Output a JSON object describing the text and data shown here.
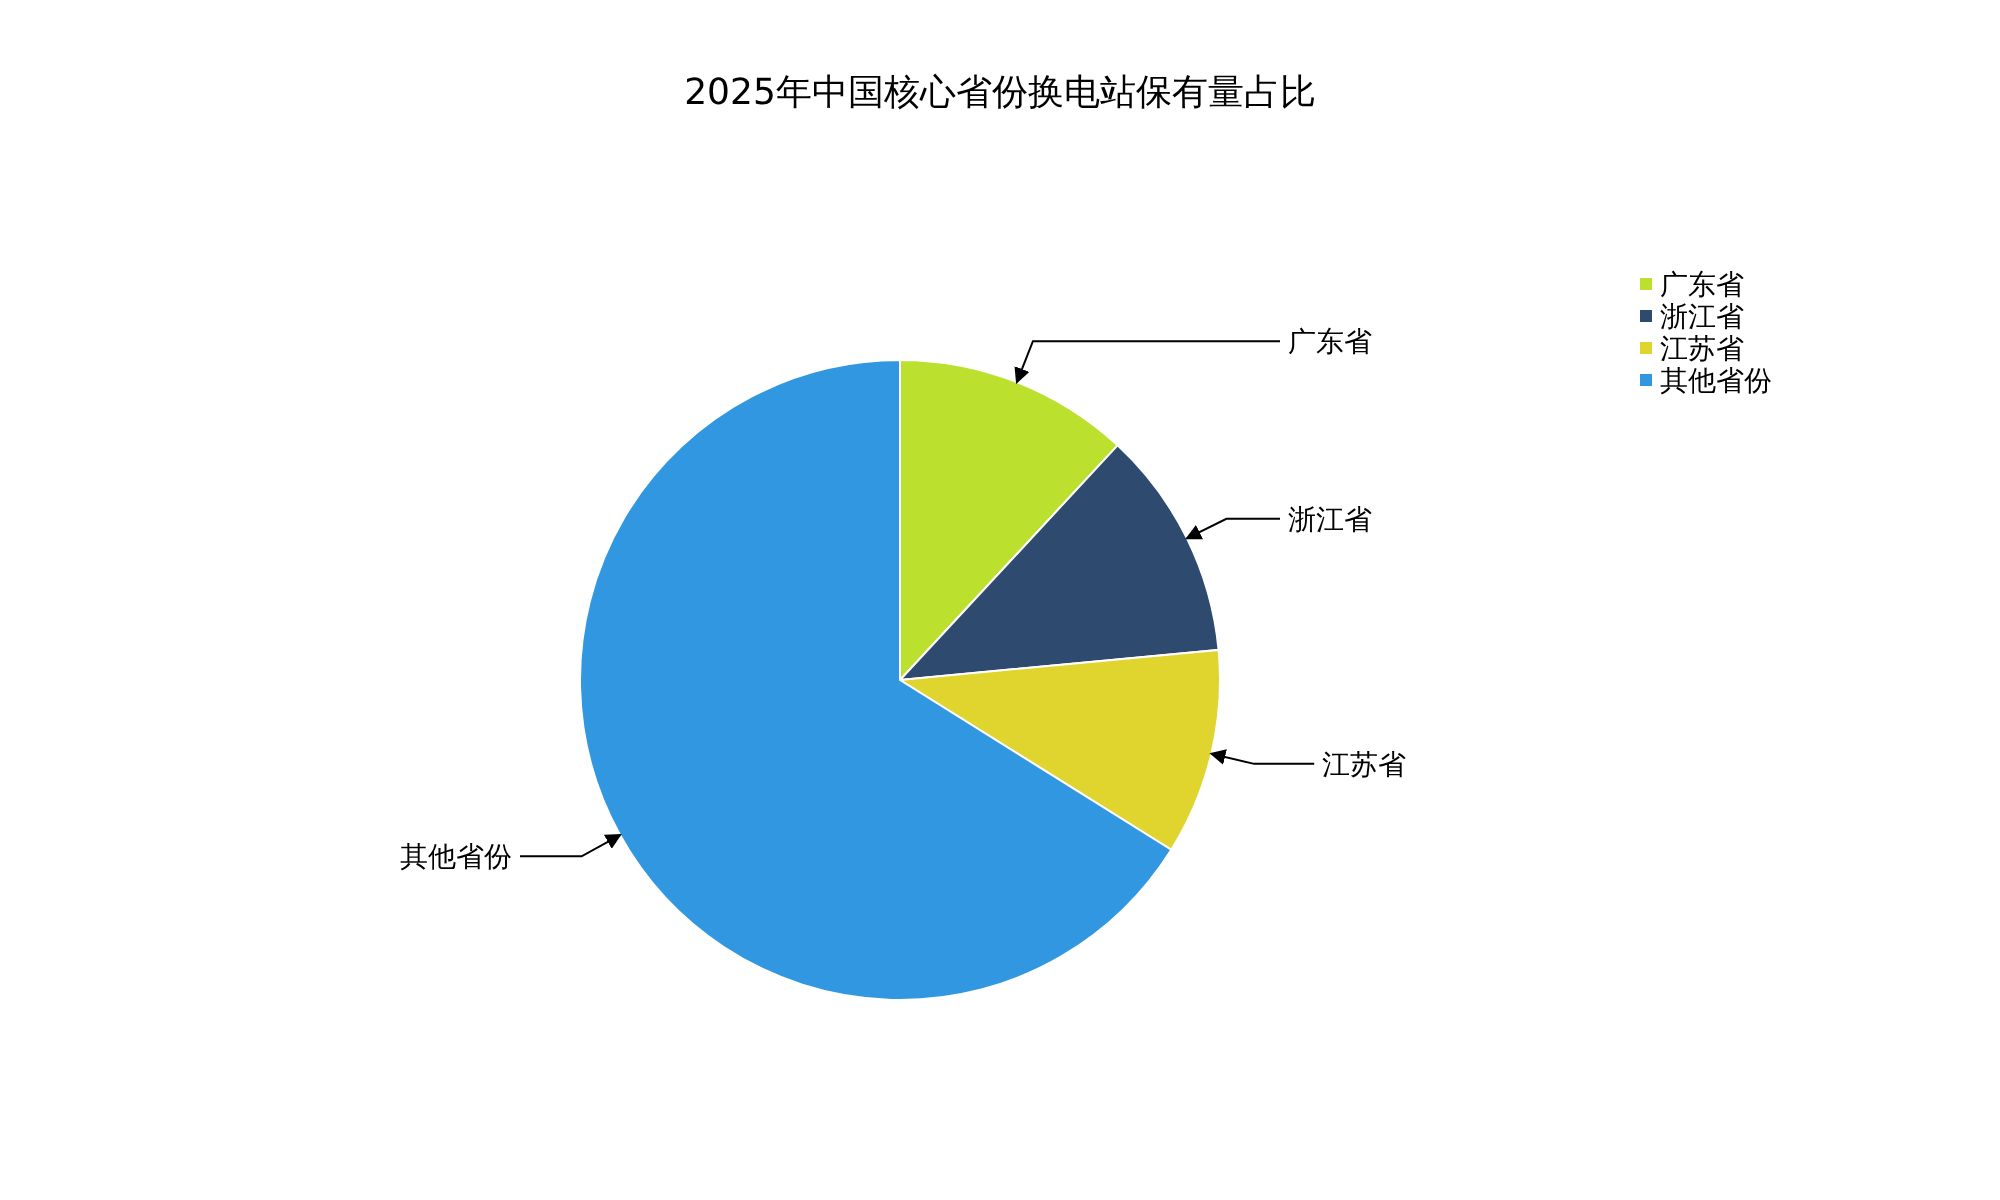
{
  "chart_data": {
    "type": "pie",
    "title": "2025年中国核心省份换电站保有量占比",
    "categories": [
      "广东省",
      "浙江省",
      "江苏省",
      "其他省份"
    ],
    "values": [
      11.9,
      11.6,
      10.4,
      66.1
    ],
    "colors": [
      "#bbe02e",
      "#2e4a6e",
      "#e0d52e",
      "#3097e0"
    ],
    "legend": "top right"
  }
}
